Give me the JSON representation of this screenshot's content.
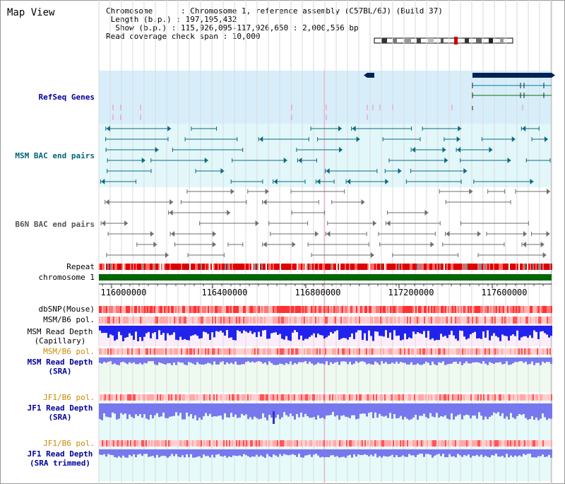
{
  "view": {
    "title": "Map View",
    "info": {
      "chromosome": "Chromosome      : Chromosome 1, reference assembly (C57BL/6J) (Build 37)",
      "length": " Length (b.p.) : 197,195,432",
      "show": "  Show (b.p.) : 115,926,095-117,926,650 : 2,000,556 bp",
      "span": "Read coverage check span : 10,000"
    }
  },
  "tracks": {
    "refseq": "RefSeq Genes",
    "msm_bac": "MSM BAC end pairs",
    "b6n_bac": "B6N BAC end pairs",
    "repeat": "Repeat",
    "chromosome": "chromosome 1",
    "dbsnp": "dbSNP(Mouse)",
    "msm_b6_pol_1": "MSM/B6 pol.",
    "msm_depth_cap_1": "MSM Read Depth",
    "msm_depth_cap_2": "(Capillary)",
    "msm_b6_pol_2": "MSM/B6 pol.",
    "msm_depth_sra_1": "MSM Read Depth",
    "msm_depth_sra_2": "(SRA)",
    "jf1_b6_pol_1": "JF1/B6 pol.",
    "jf1_depth_sra_1": "JF1 Read Depth",
    "jf1_depth_sra_2": "(SRA)",
    "jf1_b6_pol_2": "JF1/B6 pol.",
    "jf1_depth_trim_1": "JF1 Read Depth",
    "jf1_depth_trim_2": "(SRA trimmed)"
  },
  "axis": {
    "ticks": [
      "116000000",
      "116400000",
      "116800000",
      "117200000",
      "117600000"
    ]
  },
  "colors": {
    "navy": "#000099",
    "teal": "#006677",
    "gray": "#555555",
    "orange": "#cc8800",
    "refseq_bg": "#d7eefa",
    "msm_bg": "#e2f7fa",
    "gene": "#002255",
    "repeat_red": "#dd0000",
    "chrom_green": "#006600",
    "depth_blue": "#2222ee",
    "depth_light": "#7777ee"
  }
}
